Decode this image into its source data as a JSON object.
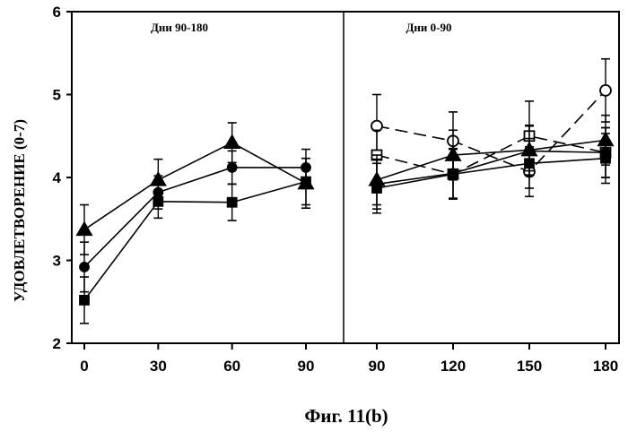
{
  "chart_data": {
    "type": "line",
    "ylabel": "УДОВЛЕТВОРЕНИЕ (0-7)",
    "ylim": [
      2,
      6
    ],
    "yticks": [
      2,
      3,
      4,
      5,
      6
    ],
    "grid": false,
    "caption": "Фиг. 11(b)",
    "panels": [
      {
        "title": "Дни 90-180",
        "x": [
          0,
          30,
          60,
          90
        ],
        "xticks": [
          "0",
          "30",
          "60",
          "90"
        ],
        "series": [
          {
            "marker": "triangle-filled",
            "dash": false,
            "values": [
              3.37,
              3.97,
              4.42,
              3.93
            ],
            "error": [
              0.3,
              0.25,
              0.24,
              0.3
            ]
          },
          {
            "marker": "circle-filled",
            "dash": false,
            "values": [
              2.92,
              3.82,
              4.12,
              4.12
            ],
            "error": [
              0.3,
              0.2,
              0.2,
              0.22
            ]
          },
          {
            "marker": "square-filled",
            "dash": false,
            "values": [
              2.52,
              3.71,
              3.7,
              3.95
            ],
            "error": [
              0.28,
              0.2,
              0.22,
              0.28
            ]
          }
        ]
      },
      {
        "title": "Дни 0-90",
        "x": [
          90,
          120,
          150,
          180
        ],
        "xticks": [
          "90",
          "120",
          "150",
          "180"
        ],
        "series": [
          {
            "marker": "circle-open",
            "dash": true,
            "values": [
              4.62,
              4.44,
              4.07,
              5.05
            ],
            "error": [
              0.38,
              0.35,
              0.3,
              0.38
            ]
          },
          {
            "marker": "square-open",
            "dash": true,
            "values": [
              4.27,
              4.04,
              4.5,
              4.3
            ],
            "error": [
              0.3,
              0.3,
              0.42,
              0.3
            ]
          },
          {
            "marker": "triangle-filled",
            "dash": false,
            "values": [
              3.97,
              4.27,
              4.33,
              4.45
            ],
            "error": [
              0.3,
              0.3,
              0.3,
              0.3
            ]
          },
          {
            "marker": "circle-filled",
            "dash": false,
            "values": [
              3.92,
              4.05,
              4.32,
              4.3
            ],
            "error": [
              0.3,
              0.3,
              0.3,
              0.3
            ]
          },
          {
            "marker": "square-filled",
            "dash": false,
            "values": [
              3.87,
              4.04,
              4.17,
              4.23
            ],
            "error": [
              0.3,
              0.3,
              0.3,
              0.3
            ]
          }
        ]
      }
    ]
  }
}
